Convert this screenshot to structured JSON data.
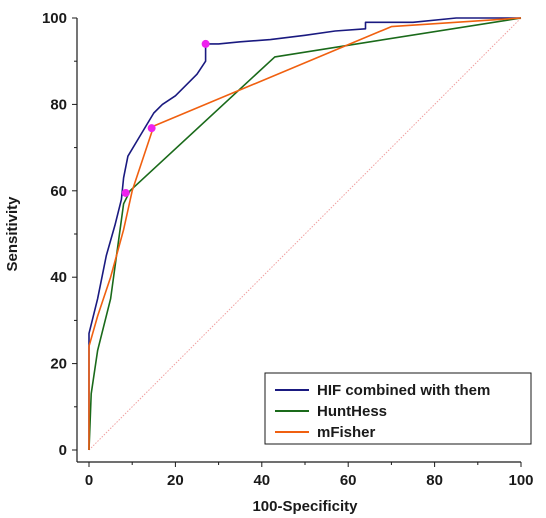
{
  "chart_data": {
    "type": "line",
    "title": "",
    "xlabel": "100-Specificity",
    "ylabel": "Sensitivity",
    "xlim": [
      0,
      100
    ],
    "ylim": [
      0,
      100
    ],
    "x_ticks": [
      0,
      20,
      40,
      60,
      80,
      100
    ],
    "y_ticks": [
      0,
      20,
      40,
      60,
      80,
      100
    ],
    "grid": false,
    "legend_position": "bottom-right",
    "reference_line": {
      "points": [
        [
          0,
          0
        ],
        [
          100,
          100
        ]
      ],
      "color": "#f0a0a0",
      "style": "dotted"
    },
    "series": [
      {
        "name": "HIF combined with them",
        "color": "#1a1a80",
        "points": [
          [
            0,
            0
          ],
          [
            0,
            27
          ],
          [
            2,
            35
          ],
          [
            4,
            45
          ],
          [
            6,
            52
          ],
          [
            7.5,
            58
          ],
          [
            8,
            63
          ],
          [
            9,
            68
          ],
          [
            12,
            73
          ],
          [
            15,
            78
          ],
          [
            17,
            80
          ],
          [
            20,
            82
          ],
          [
            23,
            85
          ],
          [
            25,
            87
          ],
          [
            27,
            90
          ],
          [
            27,
            94
          ],
          [
            30,
            94
          ],
          [
            35,
            94.5
          ],
          [
            42,
            95
          ],
          [
            50,
            96
          ],
          [
            57,
            97
          ],
          [
            64,
            97.5
          ],
          [
            64,
            99
          ],
          [
            75,
            99
          ],
          [
            85,
            100
          ],
          [
            100,
            100
          ]
        ],
        "optimal_point": [
          27,
          94
        ]
      },
      {
        "name": "HuntHess",
        "color": "#1a6a1a",
        "points": [
          [
            0,
            0
          ],
          [
            0.5,
            13
          ],
          [
            2,
            23
          ],
          [
            5,
            35
          ],
          [
            8,
            57
          ],
          [
            9,
            59
          ],
          [
            9.5,
            60
          ],
          [
            43,
            91
          ],
          [
            100,
            100
          ]
        ],
        "optimal_point": [
          8.5,
          59.5
        ]
      },
      {
        "name": "mFisher",
        "color": "#f06010",
        "points": [
          [
            0,
            0
          ],
          [
            0,
            24
          ],
          [
            2,
            31
          ],
          [
            5,
            40
          ],
          [
            8,
            51
          ],
          [
            10,
            60
          ],
          [
            15,
            75
          ],
          [
            70,
            98
          ],
          [
            100,
            100
          ]
        ],
        "optimal_point": [
          14.5,
          74.5
        ]
      }
    ],
    "optimal_point_color": "#ee22ee"
  }
}
